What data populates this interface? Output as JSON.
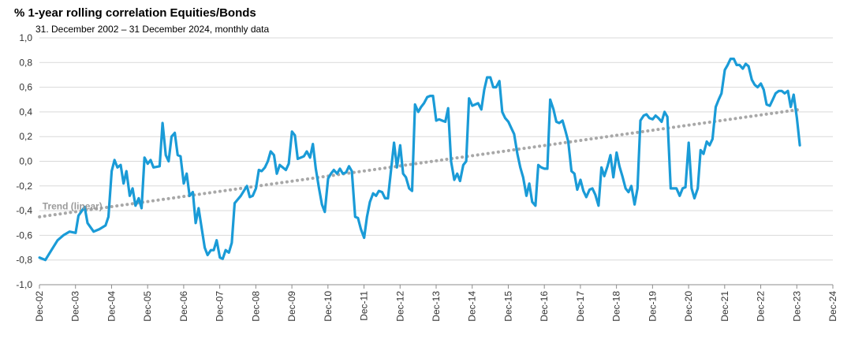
{
  "title": "% 1-year rolling correlation Equities/Bonds",
  "subtitle": "31. December 2002 – 31 December 2024, monthly data",
  "chart_data": {
    "type": "line",
    "title": "% 1-year rolling correlation Equities/Bonds",
    "subtitle": "31. December 2002 – 31 December 2024, monthly data",
    "xlabel": "",
    "ylabel": "",
    "ylim": [
      -1.0,
      1.0
    ],
    "ytick_values": [
      -1.0,
      -0.8,
      -0.6,
      -0.4,
      -0.2,
      0.0,
      0.2,
      0.4,
      0.6,
      0.8,
      1.0
    ],
    "ytick_labels": [
      "-1,0",
      "-0,8",
      "-0,6",
      "-0,4",
      "-0,2",
      "0,0",
      "0,2",
      "0,4",
      "0,6",
      "0,8",
      "1,0"
    ],
    "xlim": [
      2002.917,
      2024.917
    ],
    "x_tick_labels": [
      "Dec-02",
      "Dec-03",
      "Dec-04",
      "Dec-05",
      "Dec-06",
      "Dec-07",
      "Dec-08",
      "Dec-09",
      "Dec-10",
      "Dec-11",
      "Dec-12",
      "Dec-13",
      "Dec-14",
      "Dec-15",
      "Dec-16",
      "Dec-17",
      "Dec-18",
      "Dec-19",
      "Dec-20",
      "Dec-21",
      "Dec-22",
      "Dec-23",
      "Dec-24"
    ],
    "grid": true,
    "series": [
      {
        "name": "1-year rolling correlation",
        "color": "#1a9bd7",
        "points": [
          [
            2002.92,
            -0.78
          ],
          [
            2003.08,
            -0.8
          ],
          [
            2003.25,
            -0.72
          ],
          [
            2003.42,
            -0.64
          ],
          [
            2003.58,
            -0.6
          ],
          [
            2003.75,
            -0.57
          ],
          [
            2003.92,
            -0.58
          ],
          [
            2004.0,
            -0.44
          ],
          [
            2004.17,
            -0.37
          ],
          [
            2004.25,
            -0.5
          ],
          [
            2004.42,
            -0.57
          ],
          [
            2004.58,
            -0.55
          ],
          [
            2004.75,
            -0.52
          ],
          [
            2004.83,
            -0.45
          ],
          [
            2004.92,
            -0.08
          ],
          [
            2005.0,
            0.01
          ],
          [
            2005.08,
            -0.05
          ],
          [
            2005.17,
            -0.03
          ],
          [
            2005.25,
            -0.18
          ],
          [
            2005.33,
            -0.08
          ],
          [
            2005.42,
            -0.28
          ],
          [
            2005.5,
            -0.22
          ],
          [
            2005.58,
            -0.36
          ],
          [
            2005.67,
            -0.3
          ],
          [
            2005.75,
            -0.38
          ],
          [
            2005.83,
            0.03
          ],
          [
            2005.92,
            -0.02
          ],
          [
            2006.0,
            0.01
          ],
          [
            2006.08,
            -0.05
          ],
          [
            2006.25,
            -0.04
          ],
          [
            2006.33,
            0.31
          ],
          [
            2006.42,
            0.05
          ],
          [
            2006.5,
            0.0
          ],
          [
            2006.58,
            0.2
          ],
          [
            2006.67,
            0.23
          ],
          [
            2006.75,
            0.05
          ],
          [
            2006.83,
            0.04
          ],
          [
            2006.92,
            -0.18
          ],
          [
            2007.0,
            -0.1
          ],
          [
            2007.08,
            -0.28
          ],
          [
            2007.17,
            -0.25
          ],
          [
            2007.25,
            -0.5
          ],
          [
            2007.33,
            -0.38
          ],
          [
            2007.42,
            -0.55
          ],
          [
            2007.5,
            -0.7
          ],
          [
            2007.58,
            -0.76
          ],
          [
            2007.67,
            -0.72
          ],
          [
            2007.75,
            -0.72
          ],
          [
            2007.83,
            -0.64
          ],
          [
            2007.92,
            -0.78
          ],
          [
            2008.0,
            -0.79
          ],
          [
            2008.08,
            -0.72
          ],
          [
            2008.17,
            -0.74
          ],
          [
            2008.25,
            -0.66
          ],
          [
            2008.33,
            -0.34
          ],
          [
            2008.5,
            -0.28
          ],
          [
            2008.67,
            -0.2
          ],
          [
            2008.75,
            -0.29
          ],
          [
            2008.83,
            -0.28
          ],
          [
            2008.92,
            -0.22
          ],
          [
            2009.0,
            -0.07
          ],
          [
            2009.08,
            -0.08
          ],
          [
            2009.17,
            -0.05
          ],
          [
            2009.25,
            0.0
          ],
          [
            2009.33,
            0.08
          ],
          [
            2009.42,
            0.05
          ],
          [
            2009.5,
            -0.1
          ],
          [
            2009.58,
            -0.03
          ],
          [
            2009.75,
            -0.07
          ],
          [
            2009.83,
            -0.02
          ],
          [
            2009.92,
            0.24
          ],
          [
            2010.0,
            0.21
          ],
          [
            2010.08,
            0.02
          ],
          [
            2010.25,
            0.04
          ],
          [
            2010.33,
            0.08
          ],
          [
            2010.42,
            0.03
          ],
          [
            2010.5,
            0.14
          ],
          [
            2010.58,
            -0.06
          ],
          [
            2010.67,
            -0.22
          ],
          [
            2010.75,
            -0.35
          ],
          [
            2010.83,
            -0.41
          ],
          [
            2010.92,
            -0.14
          ],
          [
            2011.0,
            -0.1
          ],
          [
            2011.08,
            -0.07
          ],
          [
            2011.17,
            -0.1
          ],
          [
            2011.25,
            -0.06
          ],
          [
            2011.33,
            -0.1
          ],
          [
            2011.42,
            -0.09
          ],
          [
            2011.5,
            -0.04
          ],
          [
            2011.58,
            -0.08
          ],
          [
            2011.67,
            -0.45
          ],
          [
            2011.75,
            -0.46
          ],
          [
            2011.83,
            -0.55
          ],
          [
            2011.92,
            -0.62
          ],
          [
            2012.0,
            -0.45
          ],
          [
            2012.08,
            -0.33
          ],
          [
            2012.17,
            -0.26
          ],
          [
            2012.25,
            -0.28
          ],
          [
            2012.33,
            -0.24
          ],
          [
            2012.42,
            -0.25
          ],
          [
            2012.5,
            -0.3
          ],
          [
            2012.58,
            -0.3
          ],
          [
            2012.67,
            -0.06
          ],
          [
            2012.75,
            0.15
          ],
          [
            2012.83,
            -0.05
          ],
          [
            2012.92,
            0.13
          ],
          [
            2013.0,
            -0.1
          ],
          [
            2013.08,
            -0.13
          ],
          [
            2013.17,
            -0.22
          ],
          [
            2013.25,
            -0.24
          ],
          [
            2013.33,
            0.46
          ],
          [
            2013.42,
            0.4
          ],
          [
            2013.5,
            0.44
          ],
          [
            2013.58,
            0.47
          ],
          [
            2013.67,
            0.52
          ],
          [
            2013.75,
            0.53
          ],
          [
            2013.83,
            0.53
          ],
          [
            2013.92,
            0.33
          ],
          [
            2014.0,
            0.34
          ],
          [
            2014.08,
            0.33
          ],
          [
            2014.17,
            0.32
          ],
          [
            2014.25,
            0.43
          ],
          [
            2014.33,
            0.0
          ],
          [
            2014.42,
            -0.15
          ],
          [
            2014.5,
            -0.1
          ],
          [
            2014.58,
            -0.16
          ],
          [
            2014.67,
            -0.03
          ],
          [
            2014.75,
            0.0
          ],
          [
            2014.83,
            0.51
          ],
          [
            2014.92,
            0.45
          ],
          [
            2015.0,
            0.46
          ],
          [
            2015.08,
            0.47
          ],
          [
            2015.17,
            0.42
          ],
          [
            2015.25,
            0.58
          ],
          [
            2015.33,
            0.68
          ],
          [
            2015.42,
            0.68
          ],
          [
            2015.5,
            0.6
          ],
          [
            2015.58,
            0.6
          ],
          [
            2015.67,
            0.65
          ],
          [
            2015.75,
            0.4
          ],
          [
            2015.83,
            0.35
          ],
          [
            2015.92,
            0.32
          ],
          [
            2016.0,
            0.27
          ],
          [
            2016.08,
            0.22
          ],
          [
            2016.17,
            0.06
          ],
          [
            2016.25,
            -0.05
          ],
          [
            2016.33,
            -0.13
          ],
          [
            2016.42,
            -0.28
          ],
          [
            2016.5,
            -0.18
          ],
          [
            2016.58,
            -0.33
          ],
          [
            2016.67,
            -0.36
          ],
          [
            2016.75,
            -0.03
          ],
          [
            2016.83,
            -0.05
          ],
          [
            2016.92,
            -0.06
          ],
          [
            2017.0,
            -0.06
          ],
          [
            2017.08,
            0.5
          ],
          [
            2017.17,
            0.42
          ],
          [
            2017.25,
            0.32
          ],
          [
            2017.33,
            0.31
          ],
          [
            2017.42,
            0.33
          ],
          [
            2017.5,
            0.25
          ],
          [
            2017.58,
            0.16
          ],
          [
            2017.67,
            -0.08
          ],
          [
            2017.75,
            -0.1
          ],
          [
            2017.83,
            -0.23
          ],
          [
            2017.92,
            -0.15
          ],
          [
            2018.0,
            -0.24
          ],
          [
            2018.08,
            -0.29
          ],
          [
            2018.17,
            -0.23
          ],
          [
            2018.25,
            -0.22
          ],
          [
            2018.33,
            -0.27
          ],
          [
            2018.42,
            -0.36
          ],
          [
            2018.5,
            -0.05
          ],
          [
            2018.58,
            -0.12
          ],
          [
            2018.67,
            -0.04
          ],
          [
            2018.75,
            0.05
          ],
          [
            2018.83,
            -0.13
          ],
          [
            2018.92,
            0.07
          ],
          [
            2019.0,
            -0.04
          ],
          [
            2019.08,
            -0.12
          ],
          [
            2019.17,
            -0.22
          ],
          [
            2019.25,
            -0.25
          ],
          [
            2019.33,
            -0.2
          ],
          [
            2019.42,
            -0.35
          ],
          [
            2019.5,
            -0.22
          ],
          [
            2019.58,
            0.33
          ],
          [
            2019.67,
            0.37
          ],
          [
            2019.75,
            0.38
          ],
          [
            2019.83,
            0.35
          ],
          [
            2019.92,
            0.34
          ],
          [
            2020.0,
            0.37
          ],
          [
            2020.08,
            0.35
          ],
          [
            2020.17,
            0.32
          ],
          [
            2020.25,
            0.4
          ],
          [
            2020.33,
            0.36
          ],
          [
            2020.42,
            -0.22
          ],
          [
            2020.58,
            -0.22
          ],
          [
            2020.67,
            -0.28
          ],
          [
            2020.75,
            -0.22
          ],
          [
            2020.83,
            -0.21
          ],
          [
            2020.92,
            0.15
          ],
          [
            2021.0,
            -0.22
          ],
          [
            2021.08,
            -0.3
          ],
          [
            2021.17,
            -0.22
          ],
          [
            2021.25,
            0.09
          ],
          [
            2021.33,
            0.06
          ],
          [
            2021.42,
            0.16
          ],
          [
            2021.5,
            0.13
          ],
          [
            2021.58,
            0.18
          ],
          [
            2021.67,
            0.44
          ],
          [
            2021.75,
            0.5
          ],
          [
            2021.83,
            0.55
          ],
          [
            2021.92,
            0.74
          ],
          [
            2022.0,
            0.78
          ],
          [
            2022.08,
            0.83
          ],
          [
            2022.17,
            0.83
          ],
          [
            2022.25,
            0.78
          ],
          [
            2022.33,
            0.78
          ],
          [
            2022.42,
            0.75
          ],
          [
            2022.5,
            0.79
          ],
          [
            2022.58,
            0.77
          ],
          [
            2022.67,
            0.66
          ],
          [
            2022.75,
            0.62
          ],
          [
            2022.83,
            0.6
          ],
          [
            2022.92,
            0.63
          ],
          [
            2023.0,
            0.58
          ],
          [
            2023.08,
            0.46
          ],
          [
            2023.17,
            0.45
          ],
          [
            2023.25,
            0.5
          ],
          [
            2023.33,
            0.55
          ],
          [
            2023.42,
            0.57
          ],
          [
            2023.5,
            0.57
          ],
          [
            2023.58,
            0.55
          ],
          [
            2023.67,
            0.57
          ],
          [
            2023.75,
            0.44
          ],
          [
            2023.83,
            0.54
          ],
          [
            2023.92,
            0.35
          ],
          [
            2024.0,
            0.13
          ]
        ]
      }
    ],
    "trend": {
      "name": "Trend (linear)",
      "color": "#a8a8a8",
      "start": [
        2002.92,
        -0.45
      ],
      "end": [
        2024.0,
        0.42
      ]
    },
    "annotations": [
      {
        "text": "Trend (linear)",
        "x": 2003.0,
        "y": -0.39
      }
    ]
  }
}
